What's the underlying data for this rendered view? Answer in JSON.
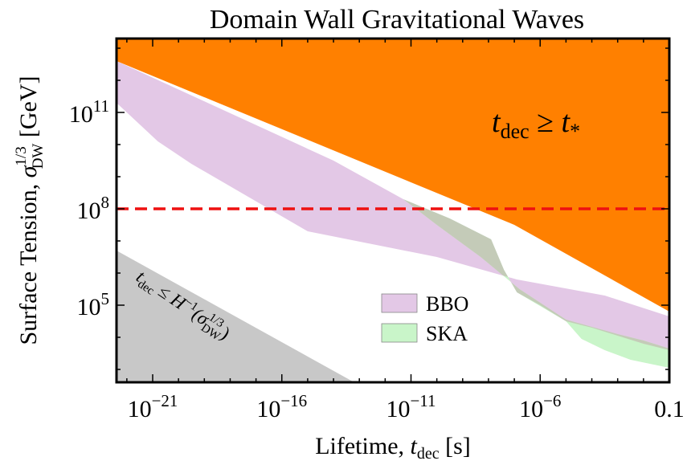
{
  "chart_data": {
    "type": "area",
    "title": "Domain Wall Gravitational Waves",
    "xlabel": {
      "main": "Lifetime, ",
      "var": "t",
      "sub": "dec",
      "unit": " [s]"
    },
    "ylabel": {
      "main": "Surface Tension, ",
      "var": "σ",
      "sub": "DW",
      "sup": "1/3",
      "unit": " [GeV]"
    },
    "x_scale": "log10",
    "y_scale": "log10",
    "xlim_log10": [
      -22.4,
      -1
    ],
    "ylim_log10": [
      2.6,
      13.3
    ],
    "x_ticks": [
      {
        "log": -21,
        "base": "10",
        "exp": "−21"
      },
      {
        "log": -16,
        "base": "10",
        "exp": "−16"
      },
      {
        "log": -11,
        "base": "10",
        "exp": "−11"
      },
      {
        "log": -6,
        "base": "10",
        "exp": "−6"
      },
      {
        "log": -1,
        "plain": "0.1"
      }
    ],
    "y_ticks": [
      {
        "log": 5,
        "base": "10",
        "exp": "5"
      },
      {
        "log": 8,
        "base": "10",
        "exp": "8"
      },
      {
        "log": 11,
        "base": "10",
        "exp": "11"
      }
    ],
    "annotations": {
      "orange_label": {
        "var": "t",
        "sub": "dec",
        "rel": " ≥ ",
        "var2": "t",
        "sub2": "*"
      },
      "gray_label": {
        "var": "t",
        "sub": "dec",
        "rel": " ≤ ",
        "H": "H",
        "exp": "−1",
        "open": "(σ",
        "sup": "1/3",
        "sub2": "DW",
        "close": ")"
      }
    },
    "colors": {
      "orange": "#ff8000",
      "bbo": "#e3c8e6",
      "ska": "#c9f5c9",
      "overlap": "#c4cbb8",
      "gray": "#c8c8c8",
      "dashed": "#ee1111"
    },
    "series": [
      {
        "name": "BBO",
        "region": [
          [
            -22.4,
            12.6
          ],
          [
            -14,
            9.5
          ],
          [
            -11.3,
            8.3
          ],
          [
            -9.5,
            7.7
          ],
          [
            -7.9,
            7.05
          ],
          [
            -7.4,
            6.1
          ],
          [
            -6.9,
            5.4
          ],
          [
            -6,
            5.0
          ],
          [
            -5,
            4.5
          ],
          [
            -4,
            4.3
          ],
          [
            -3,
            4.05
          ],
          [
            -2,
            3.8
          ],
          [
            -1,
            3.6
          ],
          [
            -1,
            4.65
          ],
          [
            -3.5,
            5.3
          ],
          [
            -6.9,
            5.8
          ],
          [
            -10,
            6.5
          ],
          [
            -15,
            7.3
          ],
          [
            -19.5,
            9.4
          ],
          [
            -20.8,
            10.1
          ],
          [
            -22.4,
            11.3
          ]
        ]
      },
      {
        "name": "SKA",
        "region": [
          [
            -11.3,
            8.3
          ],
          [
            -9.5,
            7.7
          ],
          [
            -7.9,
            7.05
          ],
          [
            -7.4,
            6.1
          ],
          [
            -6.9,
            5.4
          ],
          [
            -5,
            4.5
          ],
          [
            -4.4,
            3.95
          ],
          [
            -3.5,
            3.6
          ],
          [
            -2.5,
            3.3
          ],
          [
            -1,
            3.05
          ],
          [
            -1,
            3.65
          ],
          [
            -2,
            3.9
          ],
          [
            -3,
            4.1
          ],
          [
            -5,
            4.55
          ],
          [
            -6.8,
            5.5
          ],
          [
            -8.3,
            6.5
          ],
          [
            -10,
            7.5
          ],
          [
            -11.1,
            8.18
          ]
        ]
      },
      {
        "name": "t_dec >= t_*",
        "region": [
          [
            -22.4,
            13.3
          ],
          [
            -1,
            13.3
          ],
          [
            -1,
            4.8
          ],
          [
            -7,
            7.5
          ],
          [
            -22.4,
            12.6
          ]
        ]
      },
      {
        "name": "t_dec <= H^-1",
        "region": [
          [
            -22.4,
            6.7
          ],
          [
            -13.2,
            2.6
          ],
          [
            -22.4,
            2.6
          ]
        ]
      },
      {
        "name": "reference",
        "line": [
          [
            -22.4,
            8
          ],
          [
            -1,
            8
          ]
        ]
      }
    ]
  }
}
